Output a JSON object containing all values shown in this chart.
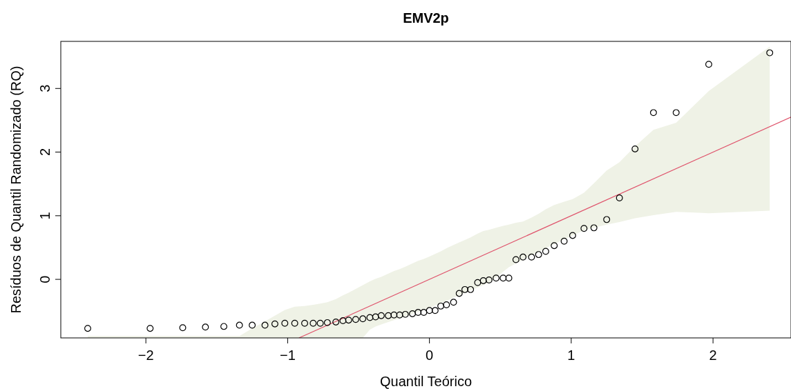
{
  "chart_data": {
    "type": "scatter",
    "title": "EMV2p",
    "xlabel": "Quantil Teórico",
    "ylabel": "Resíduos de Quantil Randomizado (RQ)",
    "xlim": [
      -2.6,
      2.55
    ],
    "ylim": [
      -0.92,
      3.74
    ],
    "xticks": [
      {
        "value": -2,
        "label": "−2"
      },
      {
        "value": -1,
        "label": "−1"
      },
      0,
      1,
      2
    ],
    "yticks": [
      0,
      1,
      2,
      3
    ],
    "grid": false,
    "series": [
      {
        "marker": "circle",
        "color": "#000000",
        "x": [
          -2.41,
          -1.97,
          -1.74,
          -1.58,
          -1.45,
          -1.34,
          -1.25,
          -1.16,
          -1.09,
          -1.02,
          -0.95,
          -0.88,
          -0.82,
          -0.77,
          -0.72,
          -0.66,
          -0.61,
          -0.57,
          -0.52,
          -0.47,
          -0.42,
          -0.38,
          -0.34,
          -0.29,
          -0.25,
          -0.21,
          -0.17,
          -0.12,
          -0.08,
          -0.04,
          0,
          0.04,
          0.08,
          0.12,
          0.17,
          0.21,
          0.25,
          0.29,
          0.34,
          0.38,
          0.42,
          0.47,
          0.52,
          0.56,
          0.61,
          0.66,
          0.72,
          0.77,
          0.82,
          0.88,
          0.95,
          1.01,
          1.09,
          1.16,
          1.25,
          1.34,
          1.45,
          1.58,
          1.74,
          1.97,
          2.4
        ],
        "values": [
          -0.77,
          -0.77,
          -0.76,
          -0.75,
          -0.74,
          -0.72,
          -0.72,
          -0.72,
          -0.7,
          -0.69,
          -0.69,
          -0.69,
          -0.69,
          -0.69,
          -0.68,
          -0.67,
          -0.65,
          -0.64,
          -0.63,
          -0.62,
          -0.6,
          -0.59,
          -0.57,
          -0.57,
          -0.56,
          -0.56,
          -0.55,
          -0.54,
          -0.52,
          -0.52,
          -0.49,
          -0.49,
          -0.42,
          -0.4,
          -0.36,
          -0.22,
          -0.16,
          -0.16,
          -0.05,
          -0.02,
          -0.01,
          0.02,
          0.02,
          0.02,
          0.31,
          0.35,
          0.35,
          0.39,
          0.44,
          0.53,
          0.6,
          0.69,
          0.8,
          0.81,
          0.94,
          1.28,
          2.05,
          2.62,
          2.62,
          3.38,
          3.56
        ],
        "lower": [
          -0.92,
          -0.92,
          -0.92,
          -0.92,
          -0.92,
          -0.92,
          -0.92,
          -0.92,
          -0.92,
          -0.92,
          -0.92,
          -0.92,
          -0.92,
          -0.92,
          -0.92,
          -0.92,
          -0.92,
          -0.92,
          -0.92,
          -0.92,
          -0.79,
          -0.74,
          -0.71,
          -0.67,
          -0.64,
          -0.61,
          -0.58,
          -0.54,
          -0.51,
          -0.48,
          -0.45,
          -0.41,
          -0.37,
          -0.34,
          -0.29,
          -0.25,
          -0.21,
          -0.17,
          -0.13,
          -0.09,
          -0.05,
          0.03,
          0.12,
          0.19,
          0.25,
          0.31,
          0.38,
          0.43,
          0.49,
          0.55,
          0.63,
          0.69,
          0.77,
          0.81,
          0.86,
          0.9,
          0.96,
          1.01,
          1.06,
          1.04,
          1.08
        ],
        "upper": [
          -0.89,
          -0.89,
          -0.89,
          -0.89,
          -0.89,
          -0.89,
          -0.77,
          -0.66,
          -0.57,
          -0.48,
          -0.43,
          -0.42,
          -0.4,
          -0.38,
          -0.36,
          -0.31,
          -0.25,
          -0.21,
          -0.15,
          -0.09,
          -0.03,
          0.01,
          0.04,
          0.09,
          0.13,
          0.16,
          0.2,
          0.25,
          0.29,
          0.32,
          0.36,
          0.4,
          0.44,
          0.49,
          0.54,
          0.58,
          0.62,
          0.66,
          0.72,
          0.76,
          0.78,
          0.81,
          0.84,
          0.86,
          0.89,
          0.91,
          0.97,
          1.03,
          1.1,
          1.17,
          1.22,
          1.26,
          1.36,
          1.51,
          1.71,
          1.84,
          2.09,
          2.35,
          2.46,
          2.96,
          3.66
        ]
      },
      {
        "type": "line",
        "color": "#df536b",
        "x": [
          -0.92,
          2.55
        ],
        "values": [
          -0.92,
          2.55
        ]
      }
    ]
  }
}
